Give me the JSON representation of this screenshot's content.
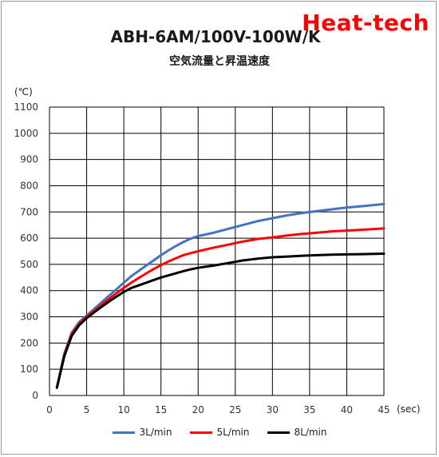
{
  "brand": "Heat-tech",
  "chart_data": {
    "type": "line",
    "title": "ABH-6AM/100V-100W/K",
    "subtitle": "空気流量と昇温速度",
    "ylabel": "(℃)",
    "xlabel": "(sec)",
    "xlim": [
      0,
      45
    ],
    "ylim": [
      0,
      1100
    ],
    "x_ticks": [
      0,
      5,
      10,
      15,
      20,
      25,
      30,
      35,
      40,
      45
    ],
    "y_ticks": [
      0,
      100,
      200,
      300,
      400,
      500,
      600,
      700,
      800,
      900,
      1000,
      1100
    ],
    "grid": true,
    "legend_position": "bottom",
    "series": [
      {
        "name": "3L/min",
        "color": "#4472c4",
        "points": [
          [
            1,
            30
          ],
          [
            2,
            160
          ],
          [
            3,
            240
          ],
          [
            4,
            280
          ],
          [
            5,
            305
          ],
          [
            6,
            330
          ],
          [
            7,
            355
          ],
          [
            8,
            380
          ],
          [
            9,
            405
          ],
          [
            10,
            430
          ],
          [
            11,
            455
          ],
          [
            12,
            475
          ],
          [
            13,
            495
          ],
          [
            14,
            515
          ],
          [
            15,
            535
          ],
          [
            16,
            553
          ],
          [
            17,
            570
          ],
          [
            18,
            585
          ],
          [
            19,
            598
          ],
          [
            20,
            608
          ],
          [
            22,
            620
          ],
          [
            24,
            635
          ],
          [
            26,
            650
          ],
          [
            28,
            665
          ],
          [
            30,
            676
          ],
          [
            32,
            687
          ],
          [
            34,
            696
          ],
          [
            36,
            703
          ],
          [
            38,
            710
          ],
          [
            40,
            717
          ],
          [
            42,
            722
          ],
          [
            45,
            730
          ]
        ]
      },
      {
        "name": "5L/min",
        "color": "#ff0000",
        "points": [
          [
            1,
            30
          ],
          [
            2,
            155
          ],
          [
            3,
            235
          ],
          [
            4,
            273
          ],
          [
            5,
            300
          ],
          [
            6,
            322
          ],
          [
            7,
            345
          ],
          [
            8,
            368
          ],
          [
            9,
            390
          ],
          [
            10,
            410
          ],
          [
            11,
            430
          ],
          [
            12,
            448
          ],
          [
            13,
            465
          ],
          [
            14,
            482
          ],
          [
            15,
            497
          ],
          [
            16,
            511
          ],
          [
            17,
            523
          ],
          [
            18,
            535
          ],
          [
            19,
            543
          ],
          [
            20,
            550
          ],
          [
            22,
            563
          ],
          [
            24,
            575
          ],
          [
            26,
            587
          ],
          [
            28,
            597
          ],
          [
            30,
            603
          ],
          [
            32,
            610
          ],
          [
            34,
            616
          ],
          [
            36,
            621
          ],
          [
            38,
            626
          ],
          [
            40,
            629
          ],
          [
            42,
            632
          ],
          [
            45,
            637
          ]
        ]
      },
      {
        "name": "8L/min",
        "color": "#000000",
        "points": [
          [
            1,
            30
          ],
          [
            2,
            150
          ],
          [
            3,
            228
          ],
          [
            4,
            268
          ],
          [
            5,
            295
          ],
          [
            6,
            317
          ],
          [
            7,
            338
          ],
          [
            8,
            358
          ],
          [
            9,
            377
          ],
          [
            10,
            395
          ],
          [
            11,
            410
          ],
          [
            12,
            420
          ],
          [
            13,
            430
          ],
          [
            14,
            440
          ],
          [
            15,
            450
          ],
          [
            16,
            458
          ],
          [
            17,
            466
          ],
          [
            18,
            474
          ],
          [
            19,
            481
          ],
          [
            20,
            487
          ],
          [
            22,
            495
          ],
          [
            24,
            505
          ],
          [
            26,
            515
          ],
          [
            28,
            522
          ],
          [
            30,
            527
          ],
          [
            32,
            530
          ],
          [
            34,
            533
          ],
          [
            36,
            535
          ],
          [
            38,
            537
          ],
          [
            40,
            538
          ],
          [
            42,
            539
          ],
          [
            45,
            541
          ]
        ]
      }
    ]
  }
}
